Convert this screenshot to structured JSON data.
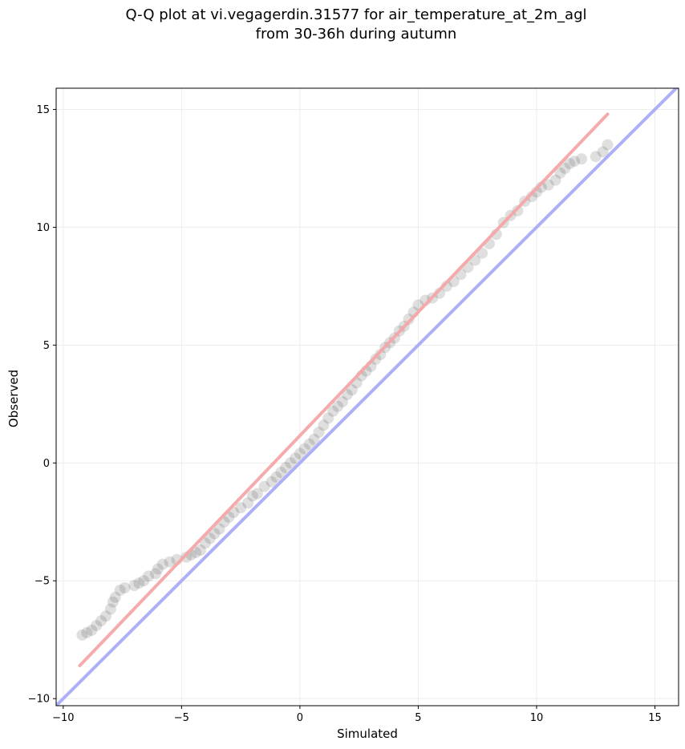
{
  "chart_data": {
    "type": "scatter",
    "title_line1": "Q-Q plot at vi.vegagerdin.31577 for air_temperature_at_2m_agl",
    "title_line2": "from 30-36h during autumn",
    "xlabel": "Simulated",
    "ylabel": "Observed",
    "xlim": [
      -10.3,
      16.0
    ],
    "ylim": [
      -10.3,
      15.9
    ],
    "x_ticks": [
      -10,
      -5,
      0,
      5,
      10,
      15
    ],
    "y_ticks": [
      -10,
      -5,
      0,
      5,
      10,
      15
    ],
    "x_tick_labels": [
      "−10",
      "−5",
      "0",
      "5",
      "10",
      "15"
    ],
    "y_tick_labels": [
      "−10",
      "−5",
      "0",
      "5",
      "10",
      "15"
    ],
    "grid": true,
    "point_color": "#505050",
    "series": [
      {
        "kind": "points",
        "points": [
          [
            -9.2,
            -7.3
          ],
          [
            -9.0,
            -7.2
          ],
          [
            -8.8,
            -7.1
          ],
          [
            -8.6,
            -6.9
          ],
          [
            -8.4,
            -6.7
          ],
          [
            -8.2,
            -6.5
          ],
          [
            -8.0,
            -6.2
          ],
          [
            -7.9,
            -5.9
          ],
          [
            -7.8,
            -5.7
          ],
          [
            -7.6,
            -5.4
          ],
          [
            -7.4,
            -5.3
          ],
          [
            -7.0,
            -5.2
          ],
          [
            -6.8,
            -5.1
          ],
          [
            -6.6,
            -5.0
          ],
          [
            -6.4,
            -4.8
          ],
          [
            -6.1,
            -4.7
          ],
          [
            -6.0,
            -4.5
          ],
          [
            -5.8,
            -4.3
          ],
          [
            -5.5,
            -4.2
          ],
          [
            -5.2,
            -4.1
          ],
          [
            -4.8,
            -4.0
          ],
          [
            -4.6,
            -3.9
          ],
          [
            -4.4,
            -3.8
          ],
          [
            -4.2,
            -3.7
          ],
          [
            -4.0,
            -3.4
          ],
          [
            -3.8,
            -3.2
          ],
          [
            -3.6,
            -3.0
          ],
          [
            -3.4,
            -2.8
          ],
          [
            -3.2,
            -2.5
          ],
          [
            -3.0,
            -2.3
          ],
          [
            -2.8,
            -2.1
          ],
          [
            -2.5,
            -1.9
          ],
          [
            -2.2,
            -1.7
          ],
          [
            -2.0,
            -1.4
          ],
          [
            -1.8,
            -1.3
          ],
          [
            -1.5,
            -1.0
          ],
          [
            -1.2,
            -0.8
          ],
          [
            -1.0,
            -0.6
          ],
          [
            -0.8,
            -0.4
          ],
          [
            -0.6,
            -0.2
          ],
          [
            -0.4,
            0.0
          ],
          [
            -0.2,
            0.2
          ],
          [
            0.0,
            0.4
          ],
          [
            0.2,
            0.6
          ],
          [
            0.4,
            0.8
          ],
          [
            0.6,
            1.0
          ],
          [
            0.8,
            1.3
          ],
          [
            1.0,
            1.6
          ],
          [
            1.2,
            1.9
          ],
          [
            1.4,
            2.2
          ],
          [
            1.6,
            2.4
          ],
          [
            1.8,
            2.6
          ],
          [
            2.0,
            2.9
          ],
          [
            2.2,
            3.1
          ],
          [
            2.4,
            3.4
          ],
          [
            2.6,
            3.7
          ],
          [
            2.8,
            3.9
          ],
          [
            3.0,
            4.1
          ],
          [
            3.2,
            4.4
          ],
          [
            3.4,
            4.6
          ],
          [
            3.6,
            4.9
          ],
          [
            3.8,
            5.1
          ],
          [
            4.0,
            5.3
          ],
          [
            4.2,
            5.6
          ],
          [
            4.4,
            5.8
          ],
          [
            4.6,
            6.1
          ],
          [
            4.8,
            6.4
          ],
          [
            5.0,
            6.7
          ],
          [
            5.3,
            6.9
          ],
          [
            5.6,
            7.0
          ],
          [
            5.9,
            7.2
          ],
          [
            6.2,
            7.5
          ],
          [
            6.5,
            7.7
          ],
          [
            6.8,
            8.0
          ],
          [
            7.1,
            8.3
          ],
          [
            7.4,
            8.6
          ],
          [
            7.7,
            8.9
          ],
          [
            8.0,
            9.3
          ],
          [
            8.3,
            9.7
          ],
          [
            8.6,
            10.2
          ],
          [
            8.9,
            10.5
          ],
          [
            9.2,
            10.7
          ],
          [
            9.5,
            11.1
          ],
          [
            9.8,
            11.3
          ],
          [
            10.0,
            11.5
          ],
          [
            10.2,
            11.7
          ],
          [
            10.5,
            11.8
          ],
          [
            10.8,
            12.0
          ],
          [
            11.0,
            12.3
          ],
          [
            11.2,
            12.5
          ],
          [
            11.4,
            12.7
          ],
          [
            11.6,
            12.8
          ],
          [
            11.9,
            12.9
          ],
          [
            12.5,
            13.0
          ],
          [
            12.8,
            13.2
          ],
          [
            13.0,
            13.5
          ]
        ]
      },
      {
        "kind": "fit-line",
        "color": "#f4a6a6",
        "points": [
          [
            -9.3,
            -8.6
          ],
          [
            13.0,
            14.8
          ]
        ]
      },
      {
        "kind": "identity-line",
        "color": "#a9acf5",
        "points": [
          [
            -10.3,
            -10.3
          ],
          [
            16.0,
            16.0
          ]
        ]
      }
    ]
  }
}
